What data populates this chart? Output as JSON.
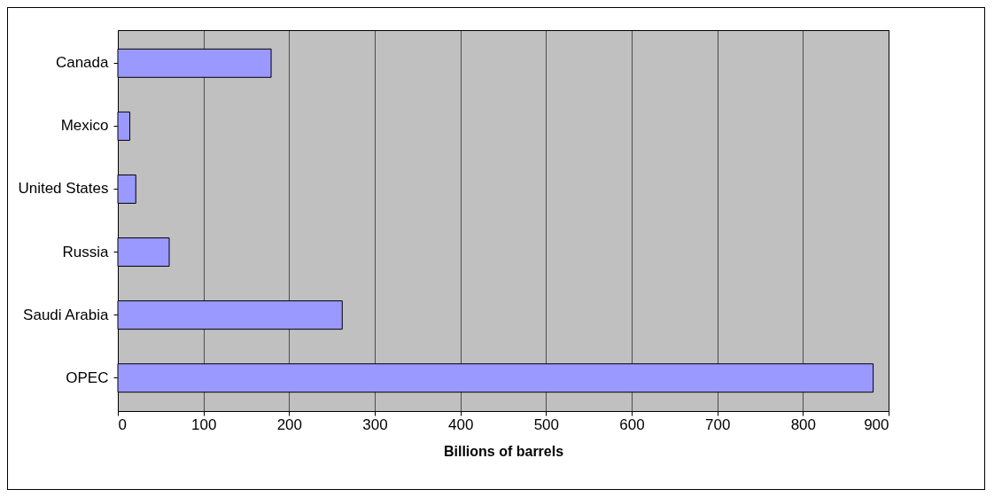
{
  "chart_data": {
    "type": "bar",
    "orientation": "horizontal",
    "xlabel": "Billions of barrels",
    "categories": [
      "Canada",
      "Mexico",
      "United States",
      "Russia",
      "Saudi Arabia",
      "OPEC"
    ],
    "values": [
      179,
      14,
      21,
      60,
      262,
      882
    ],
    "color": "#9999ff",
    "xlim": [
      0,
      900
    ],
    "xticks": [
      0,
      100,
      200,
      300,
      400,
      500,
      600,
      700,
      800,
      900
    ],
    "grid": "x"
  }
}
